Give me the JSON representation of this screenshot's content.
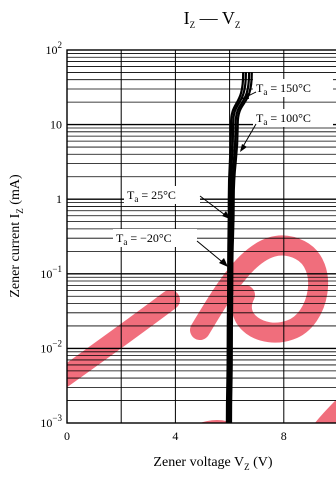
{
  "chart_data": {
    "type": "line",
    "title_main": "I",
    "title_sub1": "Z",
    "title_mid": " — V",
    "title_sub2": "Z",
    "xlabel_main": "Zener voltage  V",
    "xlabel_sub": "Z",
    "xlabel_unit": "  (V)",
    "ylabel_main": "Zener current  I",
    "ylabel_sub": "Z",
    "ylabel_unit": "  (mA)",
    "x_scale": "linear",
    "y_scale": "log",
    "xlim": [
      0,
      10
    ],
    "ylim": [
      0.001,
      100
    ],
    "x_ticks": [
      {
        "value": 0,
        "label": "0"
      },
      {
        "value": 4,
        "label": "4"
      },
      {
        "value": 8,
        "label": "8"
      }
    ],
    "y_ticks": [
      {
        "value": 100,
        "label_base": "10",
        "label_exp": "2"
      },
      {
        "value": 10,
        "label_base": "10",
        "label_exp": ""
      },
      {
        "value": 1,
        "label_base": "1",
        "label_exp": ""
      },
      {
        "value": 0.1,
        "label_base": "10",
        "label_exp": "−1"
      },
      {
        "value": 0.01,
        "label_base": "10",
        "label_exp": "−2"
      },
      {
        "value": 0.001,
        "label_base": "10",
        "label_exp": "−3"
      }
    ],
    "grid": true,
    "series": [
      {
        "name": "Ta = −20°C",
        "points": [
          [
            5.9,
            0.001
          ],
          [
            5.93,
            0.01
          ],
          [
            5.95,
            0.1
          ],
          [
            5.97,
            1
          ],
          [
            6.05,
            10
          ],
          [
            6.5,
            50
          ]
        ]
      },
      {
        "name": "Ta = 25°C",
        "points": [
          [
            5.95,
            0.001
          ],
          [
            5.98,
            0.01
          ],
          [
            6.0,
            0.1
          ],
          [
            6.03,
            1
          ],
          [
            6.13,
            10
          ],
          [
            6.6,
            50
          ]
        ]
      },
      {
        "name": "Ta = 100°C",
        "points": [
          [
            6.0,
            0.001
          ],
          [
            6.03,
            0.01
          ],
          [
            6.05,
            0.1
          ],
          [
            6.09,
            1
          ],
          [
            6.22,
            10
          ],
          [
            6.72,
            50
          ]
        ]
      },
      {
        "name": "Ta = 150°C",
        "points": [
          [
            6.05,
            0.001
          ],
          [
            6.08,
            0.01
          ],
          [
            6.1,
            0.1
          ],
          [
            6.15,
            1
          ],
          [
            6.3,
            10
          ],
          [
            6.82,
            50
          ]
        ]
      }
    ],
    "annotations": [
      {
        "main": "T",
        "sub": "a",
        "rest": " = 150°C",
        "series": "Ta = 150°C"
      },
      {
        "main": "T",
        "sub": "a",
        "rest": " = 100°C",
        "series": "Ta = 100°C"
      },
      {
        "main": "T",
        "sub": "a",
        "rest": " = 25°C",
        "series": "Ta = 25°C"
      },
      {
        "main": "T",
        "sub": "a",
        "rest": " = −20°C",
        "series": "Ta = −20°C"
      }
    ]
  }
}
